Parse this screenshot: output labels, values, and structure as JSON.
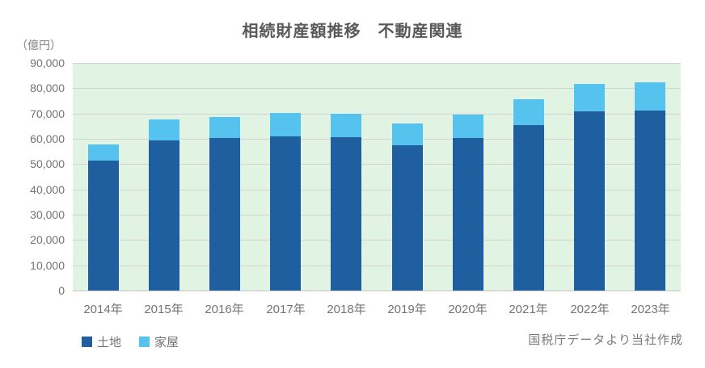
{
  "header": {
    "title": "相続財産額推移　不動産関連"
  },
  "y_axis": {
    "unit_label": "（億円）",
    "ticks": [
      "0",
      "10,000",
      "20,000",
      "30,000",
      "40,000",
      "50,000",
      "60,000",
      "70,000",
      "80,000",
      "90,000"
    ]
  },
  "x_axis": {
    "ticks": [
      "2014年",
      "2015年",
      "2016年",
      "2017年",
      "2018年",
      "2019年",
      "2020年",
      "2021年",
      "2022年",
      "2023年"
    ]
  },
  "legend": {
    "items": [
      {
        "label": "土地",
        "color": "#1f5fa0"
      },
      {
        "label": "家屋",
        "color": "#55c3ee"
      }
    ]
  },
  "footer": {
    "source_note": "国税庁データより当社作成"
  },
  "colors": {
    "land_bar": "#1f5fa0",
    "house_bar": "#55c3ee",
    "plot_background": "#e1f3e2",
    "gridline": "#d2d2d2",
    "title_text": "#595959",
    "axis_text": "#737373"
  },
  "chart_data": {
    "type": "bar",
    "stacked": true,
    "title": "相続財産額推移　不動産関連",
    "unit": "億円",
    "categories": [
      "2014年",
      "2015年",
      "2016年",
      "2017年",
      "2018年",
      "2019年",
      "2020年",
      "2021年",
      "2022年",
      "2023年"
    ],
    "series": [
      {
        "name": "土地",
        "color": "#1f5fa0",
        "values": [
          51400,
          59300,
          60400,
          61000,
          60500,
          57400,
          60300,
          65400,
          70700,
          71300
        ]
      },
      {
        "name": "家屋",
        "color": "#55c3ee",
        "values": [
          6300,
          8300,
          8400,
          9200,
          9300,
          8700,
          9400,
          10100,
          10900,
          11200
        ]
      }
    ],
    "stack_totals": [
      57700,
      67600,
      68800,
      70200,
      69800,
      66100,
      69700,
      75500,
      81600,
      82500
    ],
    "ylabel": "（億円）",
    "xlabel": "",
    "ylim": [
      0,
      90000
    ],
    "ytick_step": 10000,
    "grid": true,
    "legend_position": "bottom-left",
    "source_note": "国税庁データより当社作成"
  }
}
